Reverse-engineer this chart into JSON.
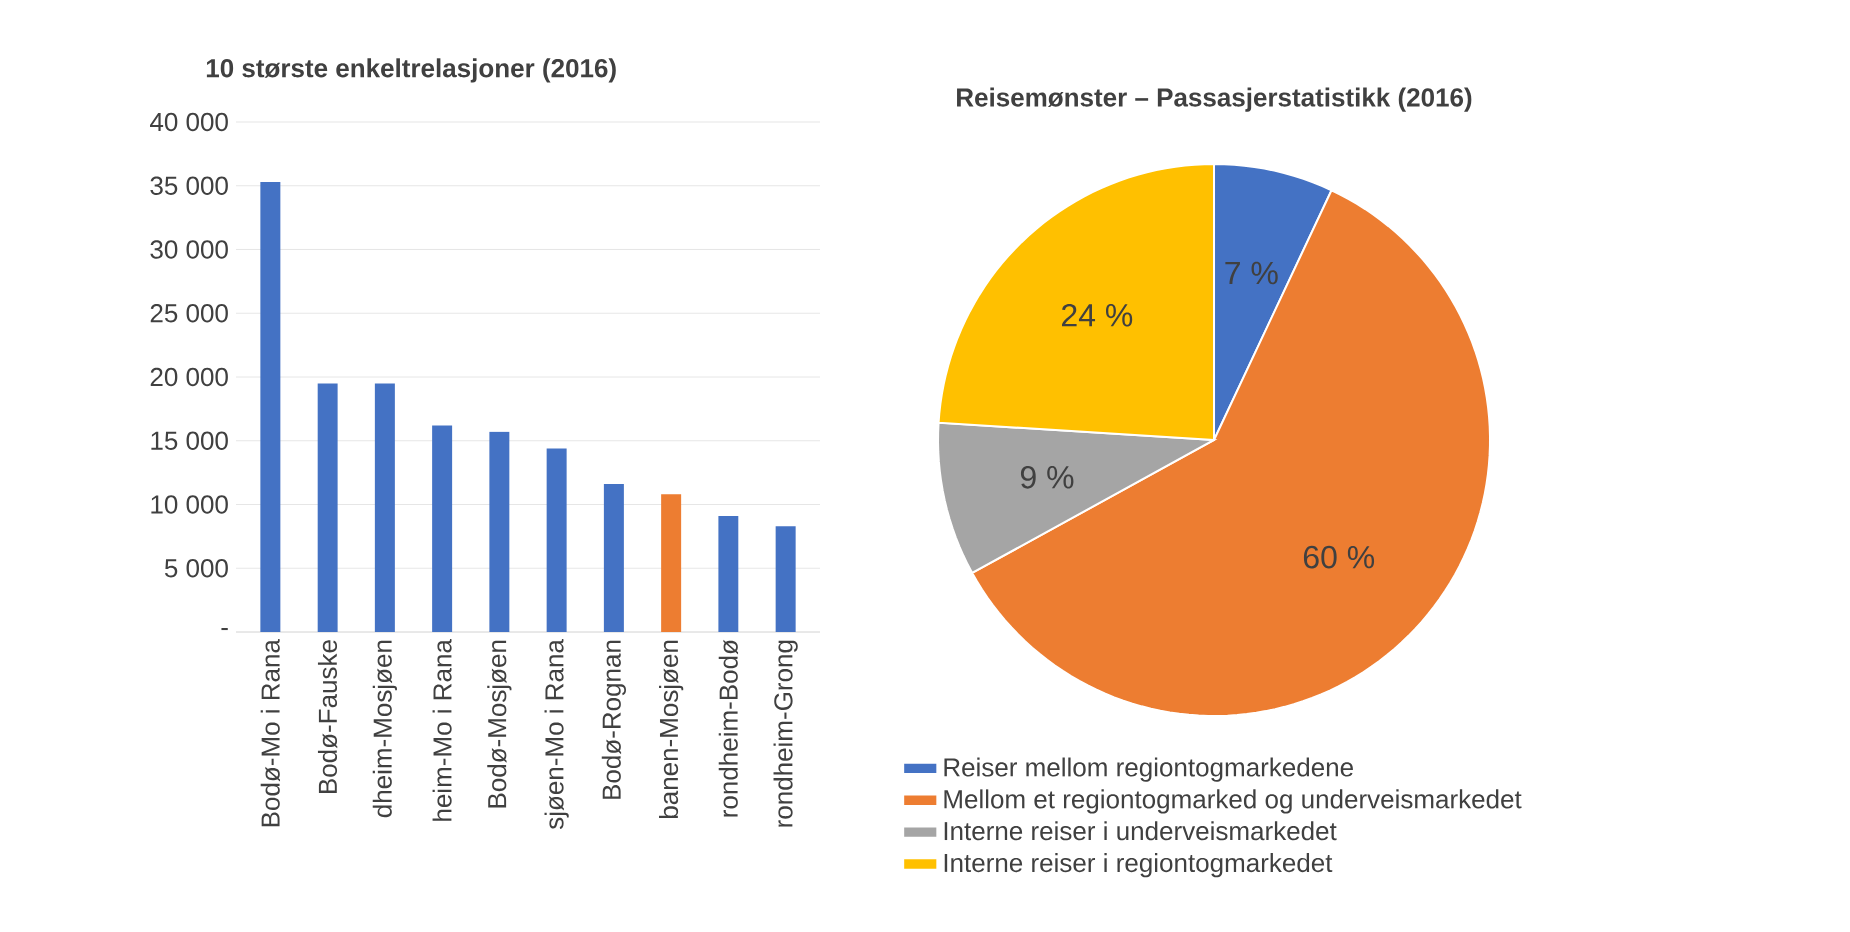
{
  "chart_data": [
    {
      "type": "bar",
      "title": "10 største enkeltrelasjoner (2016)",
      "categories": [
        "Bodø-Mo i Rana",
        "Bodø-Fauske",
        "dheim-Mosjøen",
        "heim-Mo i Rana",
        "Bodø-Mosjøen",
        "sjøen-Mo i Rana",
        "Bodø-Rognan",
        "banen-Mosjøen",
        "rondheim-Bodø",
        "rondheim-Grong"
      ],
      "values": [
        35300,
        19500,
        19500,
        16200,
        15700,
        14400,
        11600,
        10800,
        9100,
        8300
      ],
      "colors": [
        "#4472c4",
        "#4472c4",
        "#4472c4",
        "#4472c4",
        "#4472c4",
        "#4472c4",
        "#4472c4",
        "#ed7d31",
        "#4472c4",
        "#4472c4"
      ],
      "ylim": [
        0,
        40000
      ],
      "yticks": [
        {
          "value": 0,
          "label": "-"
        },
        {
          "value": 5000,
          "label": "5 000"
        },
        {
          "value": 10000,
          "label": "10 000"
        },
        {
          "value": 15000,
          "label": "15 000"
        },
        {
          "value": 20000,
          "label": "20 000"
        },
        {
          "value": 25000,
          "label": "25 000"
        },
        {
          "value": 30000,
          "label": "30 000"
        },
        {
          "value": 35000,
          "label": "35 000"
        },
        {
          "value": 40000,
          "label": "40 000"
        }
      ],
      "grid": "y"
    },
    {
      "type": "pie",
      "title": "Reisemønster – Passasjerstatistikk (2016)",
      "categories": [
        "Reiser mellom regiontogmarkedene",
        "Mellom et regiontogmarked og underveismarkedet",
        "Interne reiser i underveismarkedet",
        "Interne reiser i regiontogmarkedet"
      ],
      "values": [
        7,
        60,
        9,
        24
      ],
      "colors": [
        "#4472c4",
        "#ed7d31",
        "#a5a5a5",
        "#ffc000"
      ],
      "value_labels": [
        "7 %",
        "60 %",
        "9 %",
        "24 %"
      ],
      "legend": "bottom"
    }
  ]
}
